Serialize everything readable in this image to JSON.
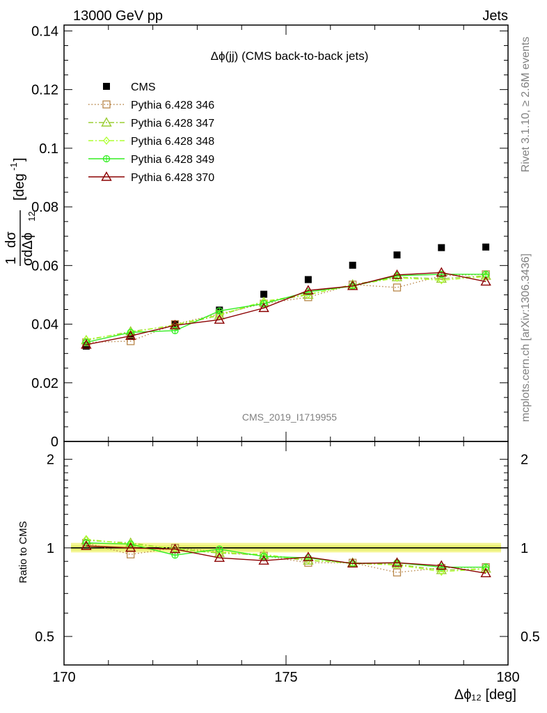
{
  "header": {
    "left": "13000 GeV pp",
    "right": "Jets"
  },
  "side": {
    "rivet": "Rivet 3.1.10, ≥ 2.6M events",
    "mcplots": "mcplots.cern.ch [arXiv:1306.3436]"
  },
  "chart_data": [
    {
      "type": "scatter",
      "title": "Δϕ(jj) (CMS back-to-back jets)",
      "watermark": "CMS_2019_I1719955",
      "ylabel": "1/σ dσ/dΔϕ₁₂ [deg⁻¹]",
      "ylim": [
        0,
        0.142
      ],
      "yticks": [
        {
          "v": 0,
          "label": "0"
        },
        {
          "v": 0.02,
          "label": "0.02"
        },
        {
          "v": 0.04,
          "label": "0.04"
        },
        {
          "v": 0.06,
          "label": "0.06"
        },
        {
          "v": 0.08,
          "label": "0.08"
        },
        {
          "v": 0.1,
          "label": "0.1"
        },
        {
          "v": 0.12,
          "label": "0.12"
        },
        {
          "v": 0.14,
          "label": "0.14"
        }
      ],
      "xlim": [
        170,
        180
      ],
      "x": [
        170.5,
        171.5,
        172.5,
        173.5,
        174.5,
        175.5,
        176.5,
        177.5,
        178.5,
        179.5
      ],
      "legend_position": "top-left",
      "series": [
        {
          "name": "CMS",
          "color": "#000000",
          "marker": "filled-square",
          "style": "none",
          "values": [
            0.0325,
            0.036,
            0.04,
            0.0448,
            0.0502,
            0.0552,
            0.0601,
            0.0636,
            0.0661,
            0.0663
          ]
        },
        {
          "name": "Pythia 6.428 346",
          "color": "#b8874a",
          "marker": "open-square",
          "style": "dotted",
          "values": [
            0.0338,
            0.0342,
            0.04,
            0.0435,
            0.047,
            0.0492,
            0.0535,
            0.0525,
            0.0565,
            0.057
          ]
        },
        {
          "name": "Pythia 6.428 347",
          "color": "#9acd32",
          "marker": "open-triangle",
          "style": "dashdot",
          "values": [
            0.0345,
            0.0375,
            0.0395,
            0.043,
            0.0475,
            0.05,
            0.0535,
            0.056,
            0.0555,
            0.0565
          ]
        },
        {
          "name": "Pythia 6.428 348",
          "color": "#adff2f",
          "marker": "open-diamond",
          "style": "dashdot",
          "values": [
            0.0348,
            0.0372,
            0.0398,
            0.0432,
            0.0478,
            0.0502,
            0.0532,
            0.0558,
            0.055,
            0.0562
          ]
        },
        {
          "name": "Pythia 6.428 349",
          "color": "#33ee22",
          "marker": "open-circle-cross",
          "style": "solid",
          "values": [
            0.0338,
            0.0372,
            0.0378,
            0.0445,
            0.047,
            0.051,
            0.053,
            0.0565,
            0.057,
            0.057
          ]
        },
        {
          "name": "Pythia 6.428 370",
          "color": "#8b0000",
          "marker": "open-triangle",
          "style": "solid",
          "values": [
            0.033,
            0.036,
            0.0396,
            0.0415,
            0.0455,
            0.0515,
            0.053,
            0.0568,
            0.0576,
            0.0545
          ]
        }
      ]
    },
    {
      "type": "line",
      "ylabel": "Ratio to CMS",
      "ylim": [
        0.4,
        2.3
      ],
      "log_y": true,
      "yticks": [
        {
          "v": 0.5,
          "label": "0.5"
        },
        {
          "v": 1,
          "label": "1"
        },
        {
          "v": 2,
          "label": "2"
        }
      ],
      "xlabel": "Δϕ₁₂ [deg]",
      "xticks": [
        {
          "v": 170,
          "label": "170"
        },
        {
          "v": 175,
          "label": "175"
        },
        {
          "v": 180,
          "label": "180"
        }
      ],
      "xlim": [
        170,
        180
      ],
      "x": [
        170.5,
        171.5,
        172.5,
        173.5,
        174.5,
        175.5,
        176.5,
        177.5,
        178.5,
        179.5
      ],
      "band": [
        0.965,
        1.04
      ],
      "series": [
        {
          "name": "Pythia 6.428 346",
          "color": "#b8874a",
          "marker": "open-square",
          "style": "dotted",
          "values": [
            1.04,
            0.95,
            1.0,
            0.97,
            0.94,
            0.89,
            0.89,
            0.825,
            0.855,
            0.86
          ]
        },
        {
          "name": "Pythia 6.428 347",
          "color": "#9acd32",
          "marker": "open-triangle",
          "style": "dashdot",
          "values": [
            1.06,
            1.04,
            0.99,
            0.96,
            0.945,
            0.905,
            0.89,
            0.88,
            0.84,
            0.85
          ]
        },
        {
          "name": "Pythia 6.428 348",
          "color": "#adff2f",
          "marker": "open-diamond",
          "style": "dashdot",
          "values": [
            1.07,
            1.03,
            0.995,
            0.965,
            0.95,
            0.91,
            0.885,
            0.875,
            0.83,
            0.848
          ]
        },
        {
          "name": "Pythia 6.428 349",
          "color": "#33ee22",
          "marker": "open-circle-cross",
          "style": "solid",
          "values": [
            1.04,
            1.03,
            0.945,
            0.99,
            0.935,
            0.925,
            0.885,
            0.89,
            0.86,
            0.86
          ]
        },
        {
          "name": "Pythia 6.428 370",
          "color": "#8b0000",
          "marker": "open-triangle",
          "style": "solid",
          "values": [
            1.015,
            1.0,
            0.99,
            0.925,
            0.905,
            0.93,
            0.885,
            0.89,
            0.87,
            0.82
          ]
        }
      ]
    }
  ]
}
